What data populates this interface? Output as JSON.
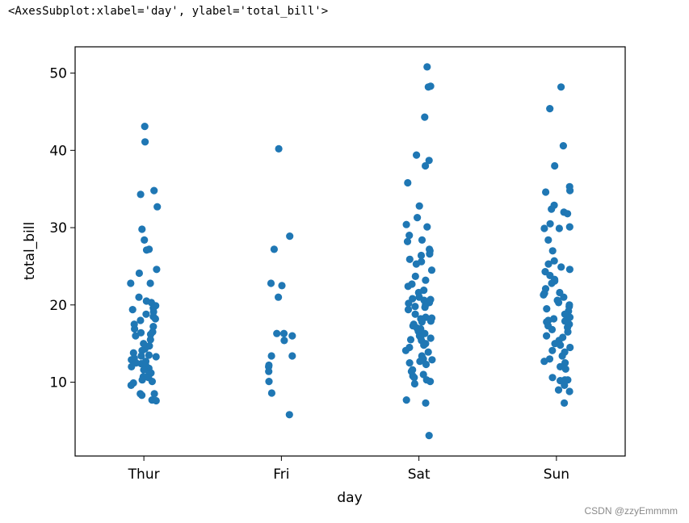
{
  "output_repr": "<AxesSubplot:xlabel='day', ylabel='total_bill'>",
  "watermark": "CSDN @zzyEmmmm",
  "chart_data": {
    "type": "scatter",
    "subtype": "stripplot",
    "xlabel": "day",
    "ylabel": "total_bill",
    "categories": [
      "Thur",
      "Fri",
      "Sat",
      "Sun"
    ],
    "yticks": [
      10,
      20,
      30,
      40,
      50
    ],
    "ylim": [
      0.45,
      53.4
    ],
    "point_color": "#1f77b4",
    "grid": false,
    "legend": null,
    "values": [
      [
        43.1,
        41.1,
        34.8,
        34.3,
        32.7,
        29.8,
        28.4,
        27.2,
        27.1,
        24.6,
        24.1,
        22.8,
        22.8,
        21.0,
        20.5,
        20.3,
        19.9,
        19.6,
        19.4,
        19.1,
        18.8,
        18.5,
        18.2,
        18.0,
        17.5,
        17.2,
        16.9,
        16.5,
        16.4,
        16.2,
        16.0,
        15.5,
        15.0,
        14.7,
        14.3,
        14.1,
        13.8,
        13.5,
        13.4,
        13.3,
        13.1,
        12.9,
        12.7,
        12.5,
        12.4,
        12.2,
        12.0,
        11.8,
        11.6,
        11.2,
        11.0,
        10.7,
        10.6,
        10.3,
        10.1,
        9.9,
        9.6,
        8.5,
        8.5,
        8.3,
        7.7,
        7.6
      ],
      [
        40.2,
        28.9,
        27.2,
        22.8,
        22.5,
        21.0,
        16.3,
        16.3,
        16.0,
        15.4,
        13.4,
        13.4,
        12.2,
        12.0,
        11.4,
        10.1,
        8.6,
        5.8
      ],
      [
        50.8,
        48.3,
        48.2,
        44.3,
        39.4,
        38.7,
        38.0,
        35.8,
        32.8,
        31.3,
        30.4,
        30.1,
        29.0,
        28.4,
        28.2,
        27.2,
        27.0,
        26.6,
        26.4,
        25.9,
        25.6,
        25.3,
        24.5,
        23.7,
        23.2,
        22.7,
        22.4,
        21.9,
        21.6,
        21.0,
        20.8,
        20.7,
        20.6,
        20.3,
        20.2,
        20.0,
        19.8,
        19.7,
        19.4,
        18.8,
        18.4,
        18.3,
        18.2,
        17.9,
        17.8,
        17.5,
        17.3,
        17.0,
        16.9,
        16.6,
        16.5,
        16.3,
        16.0,
        15.8,
        15.7,
        15.5,
        15.4,
        15.0,
        14.8,
        14.5,
        14.1,
        13.9,
        13.4,
        13.0,
        12.9,
        12.7,
        12.5,
        12.3,
        11.6,
        11.4,
        11.0,
        10.8,
        10.6,
        10.3,
        10.1,
        9.8,
        7.7,
        7.3,
        3.1
      ],
      [
        48.2,
        45.4,
        40.6,
        38.0,
        35.3,
        34.8,
        34.6,
        32.9,
        32.4,
        32.0,
        31.8,
        30.5,
        30.1,
        29.9,
        29.9,
        28.4,
        27.0,
        25.7,
        25.3,
        24.9,
        24.6,
        24.3,
        23.8,
        23.3,
        23.1,
        22.8,
        22.1,
        21.6,
        21.5,
        21.3,
        21.0,
        20.6,
        20.3,
        20.0,
        19.8,
        19.5,
        19.2,
        18.8,
        18.4,
        18.2,
        18.0,
        17.9,
        17.8,
        17.5,
        17.3,
        17.1,
        16.8,
        16.5,
        16.0,
        15.8,
        15.4,
        15.0,
        14.8,
        14.5,
        14.1,
        13.9,
        13.4,
        13.0,
        12.7,
        12.5,
        12.0,
        11.7,
        10.6,
        10.3,
        10.3,
        10.2,
        10.0,
        9.6,
        9.0,
        8.8,
        7.3
      ]
    ]
  }
}
